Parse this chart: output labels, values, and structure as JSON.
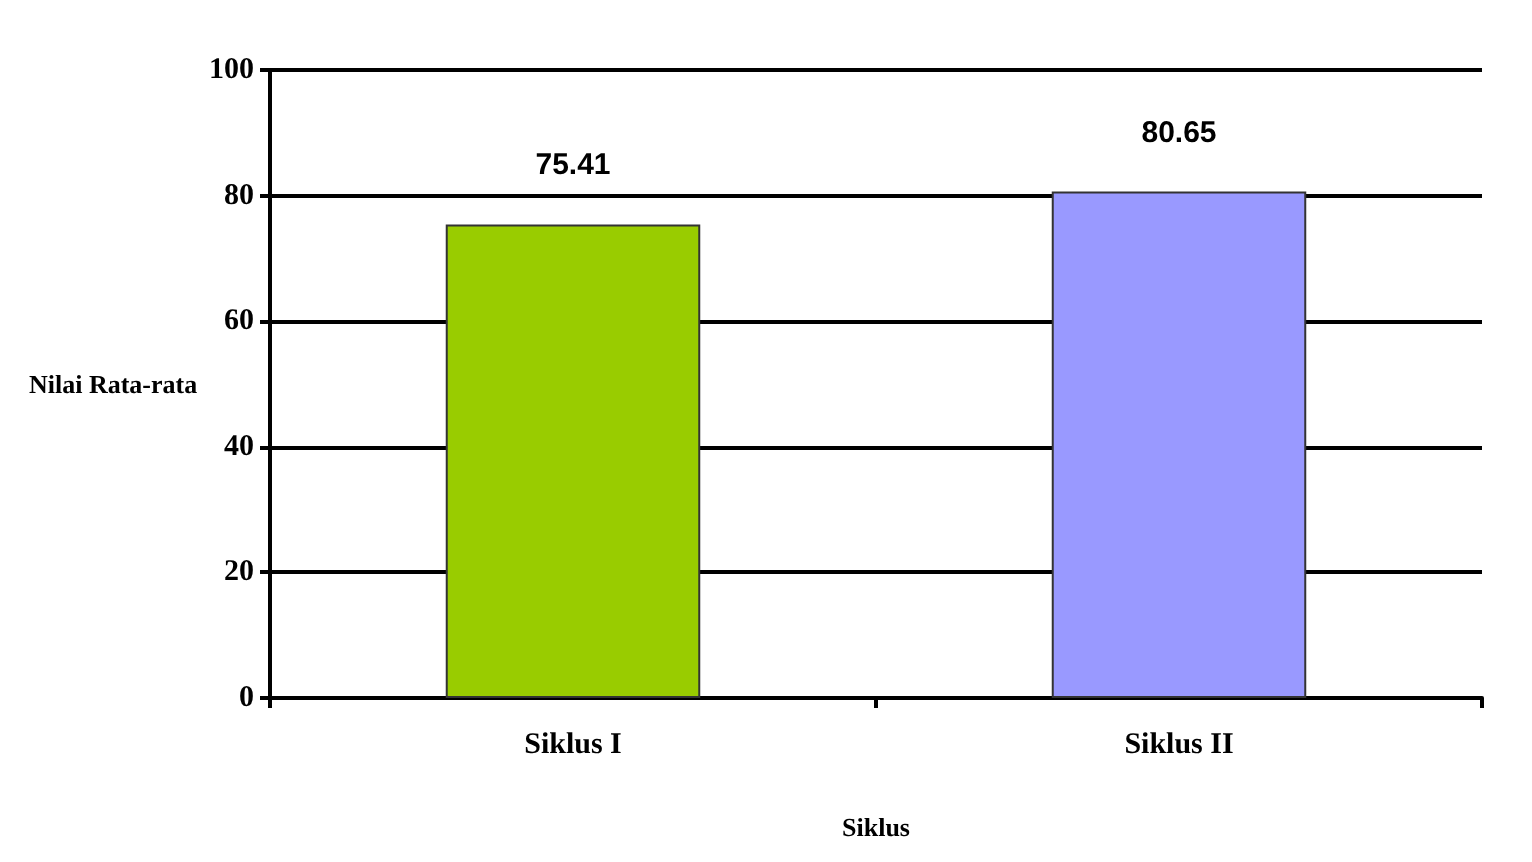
{
  "chart_data": {
    "type": "bar",
    "xlabel": "Siklus",
    "ylabel": "Nilai Rata-rata",
    "categories": [
      "Siklus I",
      "Siklus II"
    ],
    "values": [
      75.41,
      80.65
    ],
    "colors": [
      "#99cc00",
      "#9999ff"
    ],
    "ylim": [
      0,
      100
    ],
    "yticks": [
      0,
      20,
      40,
      60,
      80,
      100
    ],
    "grid": "y",
    "data_labels": true
  }
}
